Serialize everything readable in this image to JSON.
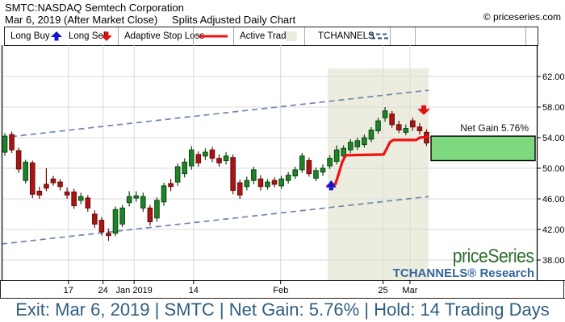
{
  "header": {
    "title_line1": "SMTC:NASDAQ Semtech Corporation",
    "title_line2_left": "Mar 6, 2019 (After Market Close)",
    "title_line2_right": "Splits Adjusted Daily Chart",
    "copyright": "© priceseries.com"
  },
  "watermark": {
    "brand": "priceSeries",
    "research": "TCHANNELS® Research"
  },
  "footer": {
    "summary": "Exit: Mar 6, 2019 | SMTC | Net Gain: 5.76% | Hold: 14 Trading Days"
  },
  "colors": {
    "candle_up": "#1e8427",
    "candle_up_edge": "#0d4713",
    "candle_down": "#a91414",
    "candle_down_edge": "#6b0b0b",
    "stop_loss": "#ee1111",
    "long_buy": "#1414cc",
    "long_sell": "#dd1111",
    "active_trade_bg": "#eceddf",
    "net_gain_fill": "#7ed87e",
    "channel": "#6e87a8",
    "grid": "#d9d9d9",
    "axis": "#333333"
  },
  "chart_data": {
    "type": "candlestick",
    "symbol": "SMTC",
    "exchange": "NASDAQ",
    "title": "SMTC:NASDAQ Semtech Corporation",
    "subtitle": "Mar 6, 2019 (After Market Close) Splits Adjusted Daily Chart",
    "legend": [
      {
        "label": "Long Buy",
        "icon": "long-buy-arrow"
      },
      {
        "label": "Long Sell",
        "icon": "long-sell-arrow"
      },
      {
        "label": "Adaptive Stop Loss",
        "icon": "stop-loss-line"
      },
      {
        "label": "Active Trade",
        "icon": "active-trade-swatch"
      },
      {
        "label": "TCHANNELS",
        "icon": "tchannels-dashes"
      }
    ],
    "ylim": [
      35.4,
      66.1
    ],
    "y_ticks": [
      38,
      42,
      46,
      50,
      54,
      58,
      62
    ],
    "y_tick_format": "2dp",
    "x_ticks": [
      {
        "label": "17",
        "i": 10.2
      },
      {
        "label": "24",
        "i": 15.2
      },
      {
        "label": "Jan 2019",
        "i": 19.7
      },
      {
        "label": "14",
        "i": 28.3
      },
      {
        "label": "Feb",
        "i": 40.9
      },
      {
        "label": "25",
        "i": 55.7
      },
      {
        "label": "Mar",
        "i": 59.6
      }
    ],
    "candles_ohlc": [
      [
        52.1,
        54.6,
        51.6,
        54.2
      ],
      [
        54.4,
        54.8,
        52.0,
        52.4
      ],
      [
        52.3,
        52.7,
        49.4,
        49.9
      ],
      [
        48.4,
        51.1,
        48.0,
        50.8
      ],
      [
        50.7,
        51.0,
        46.1,
        46.6
      ],
      [
        47.0,
        47.6,
        46.0,
        46.5
      ],
      [
        47.9,
        50.0,
        47.0,
        47.4
      ],
      [
        48.6,
        49.0,
        47.7,
        48.1
      ],
      [
        48.2,
        48.6,
        47.1,
        47.6
      ],
      [
        46.9,
        47.5,
        46.0,
        46.5
      ],
      [
        46.9,
        47.3,
        44.7,
        45.1
      ],
      [
        45.8,
        46.8,
        45.3,
        46.3
      ],
      [
        46.1,
        46.5,
        44.3,
        44.8
      ],
      [
        44.0,
        44.5,
        42.2,
        42.7
      ],
      [
        43.2,
        43.6,
        41.2,
        41.7
      ],
      [
        41.5,
        42.1,
        40.5,
        41.2
      ],
      [
        41.5,
        45.0,
        41.1,
        44.6
      ],
      [
        42.7,
        45.2,
        42.3,
        44.8
      ],
      [
        45.5,
        47.0,
        45.0,
        46.3
      ],
      [
        46.1,
        47.0,
        45.6,
        46.4
      ],
      [
        44.8,
        46.8,
        44.3,
        46.3
      ],
      [
        44.8,
        45.2,
        42.5,
        43.0
      ],
      [
        43.5,
        46.2,
        43.0,
        45.8
      ],
      [
        45.6,
        48.1,
        45.1,
        47.7
      ],
      [
        48.0,
        48.6,
        47.0,
        47.6
      ],
      [
        48.2,
        50.6,
        47.7,
        50.2
      ],
      [
        49.3,
        51.3,
        48.8,
        50.8
      ],
      [
        50.3,
        52.9,
        49.8,
        52.4
      ],
      [
        51.8,
        52.2,
        50.2,
        50.7
      ],
      [
        51.6,
        52.6,
        51.1,
        52.1
      ],
      [
        52.4,
        52.8,
        50.8,
        51.3
      ],
      [
        51.3,
        51.8,
        50.2,
        50.7
      ],
      [
        51.0,
        52.1,
        50.5,
        51.6
      ],
      [
        51.4,
        51.8,
        46.6,
        47.1
      ],
      [
        48.1,
        48.5,
        46.0,
        46.5
      ],
      [
        47.6,
        48.9,
        47.1,
        48.4
      ],
      [
        48.4,
        50.2,
        47.9,
        49.8
      ],
      [
        48.6,
        49.1,
        47.1,
        47.6
      ],
      [
        47.6,
        48.6,
        47.2,
        48.2
      ],
      [
        48.4,
        48.8,
        47.5,
        47.9
      ],
      [
        47.7,
        49.0,
        47.3,
        48.6
      ],
      [
        48.4,
        49.5,
        48.0,
        49.1
      ],
      [
        49.0,
        50.2,
        48.6,
        49.8
      ],
      [
        49.8,
        52.0,
        49.4,
        51.6
      ],
      [
        51.0,
        51.4,
        48.9,
        49.3
      ],
      [
        48.7,
        50.1,
        48.3,
        49.7
      ],
      [
        49.5,
        50.5,
        49.0,
        50.0
      ],
      [
        50.3,
        51.7,
        49.9,
        51.3
      ],
      [
        50.9,
        53.0,
        50.5,
        52.4
      ],
      [
        51.6,
        53.0,
        51.2,
        52.6
      ],
      [
        52.4,
        53.8,
        52.0,
        53.4
      ],
      [
        52.8,
        54.0,
        52.4,
        53.6
      ],
      [
        53.1,
        54.4,
        52.7,
        54.0
      ],
      [
        53.8,
        55.4,
        53.4,
        55.0
      ],
      [
        54.9,
        56.6,
        54.5,
        56.2
      ],
      [
        56.6,
        58.0,
        56.1,
        57.5
      ],
      [
        57.1,
        57.5,
        55.3,
        55.7
      ],
      [
        55.7,
        56.2,
        54.6,
        55.0
      ],
      [
        54.7,
        55.7,
        54.3,
        55.2
      ],
      [
        56.2,
        56.6,
        54.9,
        55.4
      ],
      [
        55.4,
        55.9,
        54.4,
        54.9
      ],
      [
        54.7,
        55.1,
        52.9,
        53.3
      ]
    ],
    "active_trade": {
      "start_i": 47.7,
      "end_i": 62.3,
      "hold_trading_days": 14
    },
    "stop_loss_line": [
      [
        47.7,
        47.7
      ],
      [
        48.8,
        47.9
      ],
      [
        49.2,
        49.0
      ],
      [
        49.8,
        50.8
      ],
      [
        50.3,
        51.7
      ],
      [
        55.8,
        51.8
      ],
      [
        56.2,
        52.5
      ],
      [
        56.7,
        53.4
      ],
      [
        57.2,
        53.7
      ],
      [
        60.5,
        53.7
      ],
      [
        61.0,
        54.0
      ],
      [
        62.1,
        54.1
      ]
    ],
    "markers": {
      "long_buy": {
        "i": 48.2,
        "price": 47.8
      },
      "long_sell": {
        "i": 61.6,
        "price": 57.6
      }
    },
    "tchannels": {
      "upper": {
        "start_price": 54.0,
        "end_price": 60.2
      },
      "lower": {
        "start_price": 40.1,
        "end_price": 46.3
      },
      "end_i": 62.3
    },
    "net_gain_box": {
      "price_low": 51.0,
      "price_high": 54.2,
      "label": "Net Gain 5.76%"
    },
    "trade_summary": {
      "exit_date": "Mar 6, 2019",
      "symbol": "SMTC",
      "net_gain_pct": 5.76,
      "hold_trading_days": 14
    }
  }
}
